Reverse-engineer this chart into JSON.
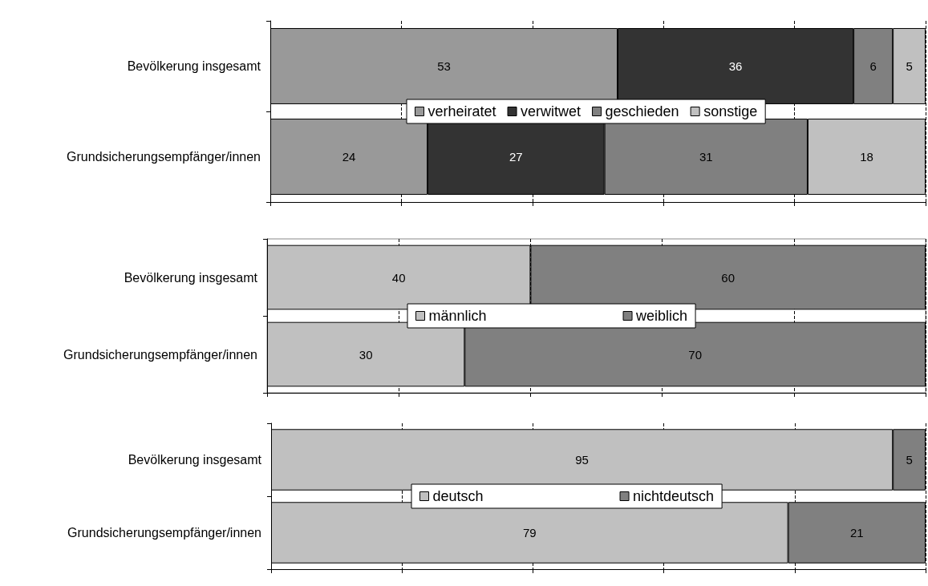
{
  "chart_data": [
    {
      "type": "bar",
      "orientation": "horizontal",
      "stacked": true,
      "categories": [
        "Bevölkerung insgesamt",
        "Grundsicherungsempfänger/innen"
      ],
      "series": [
        {
          "name": "verheiratet",
          "color": "#999999",
          "values": [
            53,
            24
          ]
        },
        {
          "name": "verwitwet",
          "color": "#333333",
          "values": [
            36,
            27
          ]
        },
        {
          "name": "geschieden",
          "color": "#808080",
          "values": [
            6,
            31
          ]
        },
        {
          "name": "sonstige",
          "color": "#c0c0c0",
          "values": [
            5,
            18
          ]
        }
      ],
      "xlim": [
        0,
        100
      ],
      "xticks": [
        {
          "value": 0,
          "label": null
        },
        {
          "value": 20,
          "label": null
        },
        {
          "value": 40,
          "label": null
        },
        {
          "value": 60,
          "label": null
        },
        {
          "value": 80,
          "label": null
        },
        {
          "value": 100,
          "label": null
        }
      ],
      "tick_labels": "y",
      "grid": "x",
      "legend": "center",
      "data_labels": true
    },
    {
      "type": "bar",
      "orientation": "horizontal",
      "stacked": true,
      "categories": [
        "Bevölkerung insgesamt",
        "Grundsicherungsempfänger/innen"
      ],
      "series": [
        {
          "name": "männlich",
          "color": "#c0c0c0",
          "values": [
            40,
            30
          ]
        },
        {
          "name": "weiblich",
          "color": "#808080",
          "values": [
            60,
            70
          ]
        }
      ],
      "xlim": [
        0,
        100
      ],
      "xticks": [
        {
          "value": 0,
          "label": null
        },
        {
          "value": 20,
          "label": null
        },
        {
          "value": 40,
          "label": null
        },
        {
          "value": 60,
          "label": null
        },
        {
          "value": 80,
          "label": null
        },
        {
          "value": 100,
          "label": null
        }
      ],
      "tick_labels": "y",
      "grid": "x",
      "legend": "center",
      "data_labels": true
    },
    {
      "type": "bar",
      "orientation": "horizontal",
      "stacked": true,
      "categories": [
        "Bevölkerung insgesamt",
        "Grundsicherungsempfänger/innen"
      ],
      "series": [
        {
          "name": "deutsch",
          "color": "#c0c0c0",
          "values": [
            95,
            79
          ]
        },
        {
          "name": "nichtdeutsch",
          "color": "#808080",
          "values": [
            5,
            21
          ]
        }
      ],
      "xlim": [
        0,
        100
      ],
      "xticks": [
        {
          "value": 0,
          "label": null
        },
        {
          "value": 20,
          "label": null
        },
        {
          "value": 40,
          "label": null
        },
        {
          "value": 60,
          "label": null
        },
        {
          "value": 80,
          "label": null
        },
        {
          "value": 100,
          "label": null
        }
      ],
      "tick_labels": "y",
      "grid": "x",
      "legend": "center",
      "data_labels": true
    }
  ]
}
